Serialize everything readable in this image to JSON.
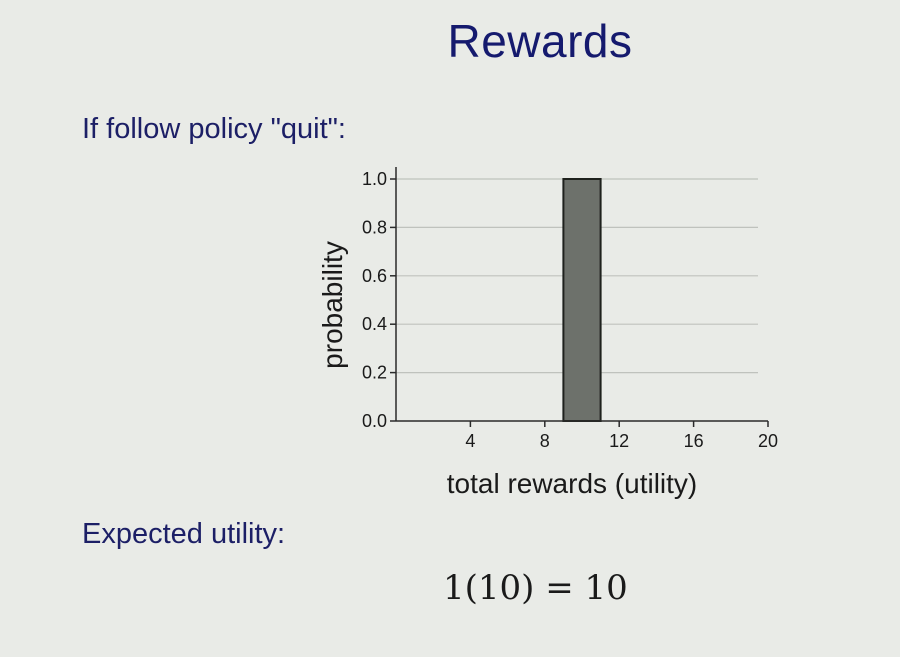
{
  "slide": {
    "title": "Rewards",
    "policy_heading": "If follow policy \"quit\":",
    "expected_heading": "Expected utility:",
    "equation": "1(10) = 10"
  },
  "chart_data": {
    "type": "bar",
    "x": [
      10
    ],
    "values": [
      1.0
    ],
    "bar_width": 2,
    "xlabel": "total rewards (utility)",
    "ylabel": "probability",
    "xlim": [
      0,
      20
    ],
    "ylim": [
      0,
      1.0
    ],
    "xticks": [
      4,
      8,
      12,
      16,
      20
    ],
    "yticks": [
      0.0,
      0.2,
      0.4,
      0.6,
      0.8,
      1.0
    ],
    "ytick_labels": [
      "0.0",
      "0.2",
      "0.4",
      "0.6",
      "0.8",
      "1.0"
    ],
    "grid": "horizontal",
    "colors": {
      "bar_fill": "#6d716b",
      "bar_edge": "#1e211d",
      "grid": "#bfc2bd",
      "axis": "#2a2a2a"
    }
  }
}
